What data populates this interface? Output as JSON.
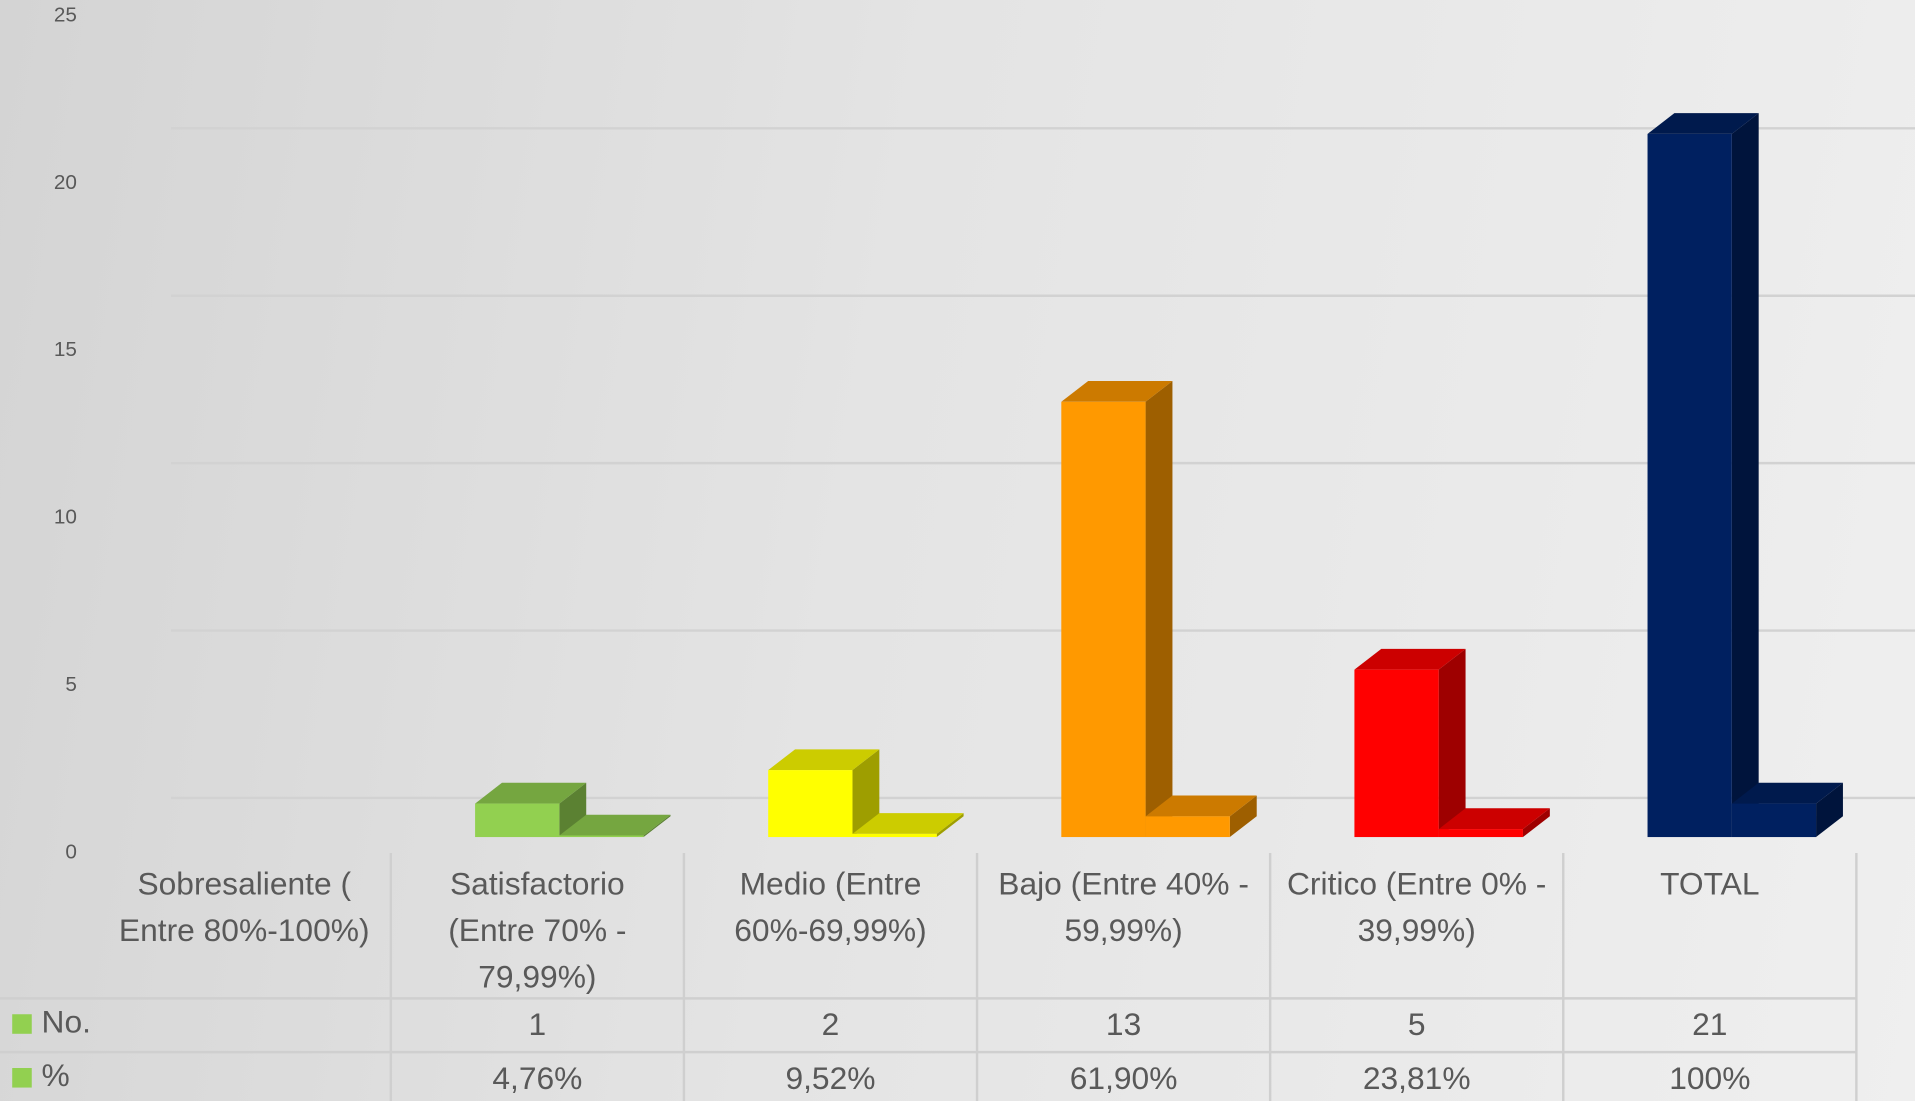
{
  "chart_data": {
    "type": "bar3d",
    "categories": [
      "Sobresaliente  ( Entre 80%-100%)",
      "Satisfactorio (Entre 70% - 79,99%)",
      "Medio (Entre 60%-69,99%)",
      "Bajo (Entre 40% - 59,99%)",
      "Critico (Entre 0% - 39,99%)",
      "TOTAL"
    ],
    "point_colors": [
      null,
      "#92d050",
      "#ffff00",
      "#ff9900",
      "#ff0000",
      "#002060"
    ],
    "series": [
      {
        "name": "No.",
        "color": "#92d050",
        "values": [
          null,
          1,
          2,
          13,
          5,
          21
        ]
      },
      {
        "name": "%",
        "color": "#92d050",
        "values": [
          null,
          0.0476,
          0.0952,
          0.619,
          0.2381,
          1
        ],
        "value_labels": [
          null,
          "4,76%",
          "9,52%",
          "61,90%",
          "23,81%",
          "100%"
        ]
      }
    ],
    "ylim": [
      0,
      25
    ],
    "yticks": [
      0,
      5,
      10,
      15,
      20,
      25
    ],
    "grid": true,
    "data_table": true
  }
}
